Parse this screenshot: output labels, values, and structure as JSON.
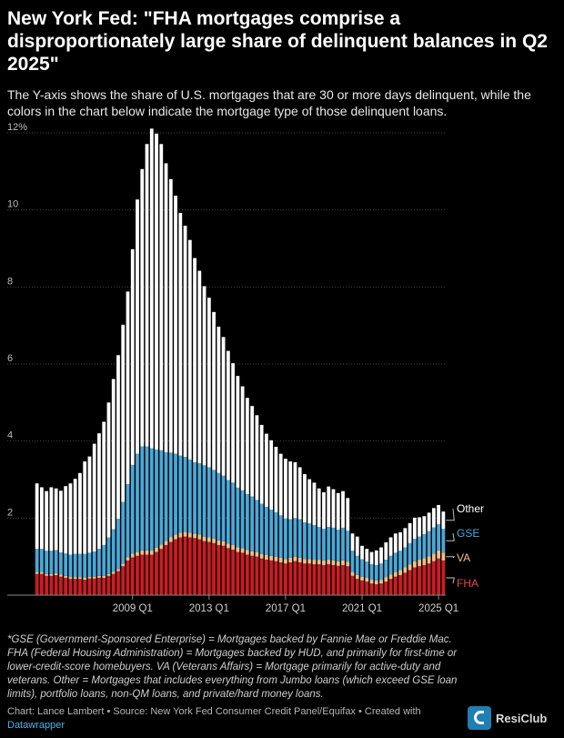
{
  "header": {
    "title": "New York Fed: \"FHA mortgages comprise a disproportionately large share of delinquent balances in Q2 2025\"",
    "subtitle": "The Y-axis shows the share of U.S. mortgages that are 30 or more days delinquent, while the colors in the chart below indicate the mortgage type of those delinquent loans."
  },
  "footer": {
    "footnote": "*GSE (Government-Sponsored Enterprise) = Mortgages backed by Fannie Mae or Freddie Mac. FHA (Federal Housing Administration) = Mortgages backed by HUD, and primarily for first-time or lower-credit-score homebuyers. VA (Veterans Affairs) = Mortgage primarily for active-duty and veterans. Other = Mortgages that includes everything from Jumbo loans (which exceed GSE loan limits), portfolio loans, non-QM loans, and private/hard money loans.",
    "credit": "Chart: Lance Lambert • Source: New York Fed Consumer Credit Panel/Equifax • Created with",
    "credit_link": "Datawrapper",
    "logo_text": "ResiClub"
  },
  "colors": {
    "FHA": "#cc1b22",
    "VA": "#f2be84",
    "GSE": "#4aa8d8",
    "Other": "#ffffff",
    "background": "#000000",
    "grid": "#444444"
  },
  "chart_data": {
    "type": "bar",
    "stacked": true,
    "title": "",
    "xlabel": "",
    "ylabel": "",
    "ylim": [
      0,
      12
    ],
    "y_ticks": [
      2,
      4,
      6,
      8,
      10
    ],
    "y_top_label": "12%",
    "grid": true,
    "x_tick_labels": [
      {
        "label": "2009 Q1",
        "index": 20
      },
      {
        "label": "2013 Q1",
        "index": 36
      },
      {
        "label": "2017 Q1",
        "index": 52
      },
      {
        "label": "2021 Q1",
        "index": 68
      },
      {
        "label": "2025 Q1",
        "index": 84
      }
    ],
    "categories": [
      "2004 Q1",
      "2004 Q2",
      "2004 Q3",
      "2004 Q4",
      "2005 Q1",
      "2005 Q2",
      "2005 Q3",
      "2005 Q4",
      "2006 Q1",
      "2006 Q2",
      "2006 Q3",
      "2006 Q4",
      "2007 Q1",
      "2007 Q2",
      "2007 Q3",
      "2007 Q4",
      "2008 Q1",
      "2008 Q2",
      "2008 Q3",
      "2008 Q4",
      "2009 Q1",
      "2009 Q2",
      "2009 Q3",
      "2009 Q4",
      "2010 Q1",
      "2010 Q2",
      "2010 Q3",
      "2010 Q4",
      "2011 Q1",
      "2011 Q2",
      "2011 Q3",
      "2011 Q4",
      "2012 Q1",
      "2012 Q2",
      "2012 Q3",
      "2012 Q4",
      "2013 Q1",
      "2013 Q2",
      "2013 Q3",
      "2013 Q4",
      "2014 Q1",
      "2014 Q2",
      "2014 Q3",
      "2014 Q4",
      "2015 Q1",
      "2015 Q2",
      "2015 Q3",
      "2015 Q4",
      "2016 Q1",
      "2016 Q2",
      "2016 Q3",
      "2016 Q4",
      "2017 Q1",
      "2017 Q2",
      "2017 Q3",
      "2017 Q4",
      "2018 Q1",
      "2018 Q2",
      "2018 Q3",
      "2018 Q4",
      "2019 Q1",
      "2019 Q2",
      "2019 Q3",
      "2019 Q4",
      "2020 Q1",
      "2020 Q2",
      "2020 Q3",
      "2020 Q4",
      "2021 Q1",
      "2021 Q2",
      "2021 Q3",
      "2021 Q4",
      "2022 Q1",
      "2022 Q2",
      "2022 Q3",
      "2022 Q4",
      "2023 Q1",
      "2023 Q2",
      "2023 Q3",
      "2023 Q4",
      "2024 Q1",
      "2024 Q2",
      "2024 Q3",
      "2024 Q4",
      "2025 Q1",
      "2025 Q2"
    ],
    "series": [
      {
        "name": "FHA",
        "values": [
          0.55,
          0.55,
          0.5,
          0.5,
          0.52,
          0.48,
          0.45,
          0.42,
          0.42,
          0.42,
          0.4,
          0.43,
          0.43,
          0.45,
          0.45,
          0.5,
          0.55,
          0.62,
          0.75,
          0.9,
          0.98,
          1.02,
          1.05,
          1.05,
          1.05,
          1.12,
          1.2,
          1.3,
          1.38,
          1.45,
          1.5,
          1.52,
          1.5,
          1.48,
          1.45,
          1.4,
          1.38,
          1.35,
          1.3,
          1.28,
          1.22,
          1.18,
          1.12,
          1.1,
          1.05,
          1.02,
          1.0,
          0.95,
          0.92,
          0.9,
          0.88,
          0.85,
          0.82,
          0.85,
          0.88,
          0.85,
          0.82,
          0.82,
          0.8,
          0.8,
          0.78,
          0.8,
          0.78,
          0.76,
          0.78,
          0.75,
          0.5,
          0.42,
          0.38,
          0.35,
          0.3,
          0.28,
          0.3,
          0.35,
          0.42,
          0.48,
          0.52,
          0.58,
          0.65,
          0.72,
          0.75,
          0.78,
          0.82,
          0.88,
          0.95,
          0.9
        ]
      },
      {
        "name": "VA",
        "values": [
          0.05,
          0.05,
          0.05,
          0.05,
          0.05,
          0.05,
          0.05,
          0.05,
          0.05,
          0.05,
          0.05,
          0.05,
          0.05,
          0.05,
          0.05,
          0.05,
          0.06,
          0.06,
          0.07,
          0.08,
          0.1,
          0.1,
          0.11,
          0.11,
          0.11,
          0.11,
          0.11,
          0.11,
          0.12,
          0.12,
          0.12,
          0.12,
          0.12,
          0.12,
          0.12,
          0.12,
          0.12,
          0.12,
          0.12,
          0.12,
          0.12,
          0.12,
          0.12,
          0.12,
          0.12,
          0.12,
          0.12,
          0.12,
          0.12,
          0.12,
          0.12,
          0.12,
          0.12,
          0.12,
          0.12,
          0.12,
          0.12,
          0.12,
          0.12,
          0.12,
          0.12,
          0.12,
          0.12,
          0.12,
          0.12,
          0.12,
          0.1,
          0.1,
          0.1,
          0.1,
          0.1,
          0.1,
          0.1,
          0.12,
          0.12,
          0.12,
          0.13,
          0.14,
          0.15,
          0.16,
          0.17,
          0.18,
          0.19,
          0.2,
          0.21,
          0.2
        ]
      },
      {
        "name": "GSE",
        "values": [
          0.6,
          0.6,
          0.6,
          0.6,
          0.6,
          0.58,
          0.58,
          0.58,
          0.6,
          0.6,
          0.62,
          0.62,
          0.65,
          0.7,
          0.8,
          0.95,
          1.1,
          1.3,
          1.6,
          1.9,
          2.3,
          2.55,
          2.7,
          2.7,
          2.65,
          2.55,
          2.45,
          2.3,
          2.2,
          2.1,
          2.0,
          1.95,
          1.9,
          1.85,
          1.85,
          1.85,
          1.82,
          1.78,
          1.75,
          1.7,
          1.65,
          1.62,
          1.55,
          1.5,
          1.45,
          1.42,
          1.35,
          1.3,
          1.25,
          1.2,
          1.15,
          1.1,
          1.05,
          1.0,
          1.0,
          1.0,
          0.95,
          0.92,
          0.9,
          0.85,
          0.82,
          0.85,
          0.85,
          0.82,
          0.85,
          0.8,
          0.55,
          0.5,
          0.45,
          0.42,
          0.4,
          0.4,
          0.42,
          0.45,
          0.48,
          0.5,
          0.5,
          0.52,
          0.55,
          0.58,
          0.6,
          0.62,
          0.65,
          0.68,
          0.68,
          0.62
        ]
      },
      {
        "name": "Other",
        "values": [
          1.7,
          1.6,
          1.55,
          1.65,
          1.6,
          1.6,
          1.75,
          1.85,
          1.95,
          2.1,
          2.4,
          2.5,
          2.8,
          3.0,
          3.2,
          3.5,
          3.9,
          4.25,
          4.6,
          5.0,
          5.6,
          6.6,
          7.2,
          7.85,
          8.3,
          8.2,
          7.95,
          7.5,
          7.1,
          6.7,
          6.3,
          6.0,
          5.7,
          5.3,
          5.0,
          4.65,
          4.4,
          4.1,
          3.8,
          3.6,
          3.35,
          3.1,
          2.9,
          2.7,
          2.5,
          2.35,
          2.2,
          2.05,
          1.9,
          1.8,
          1.7,
          1.6,
          1.55,
          1.5,
          1.45,
          1.35,
          1.25,
          1.15,
          1.1,
          1.0,
          0.95,
          1.05,
          1.0,
          0.95,
          0.95,
          0.85,
          0.45,
          0.5,
          0.35,
          0.33,
          0.32,
          0.38,
          0.42,
          0.45,
          0.48,
          0.5,
          0.48,
          0.5,
          0.52,
          0.55,
          0.5,
          0.47,
          0.48,
          0.5,
          0.5,
          0.45
        ]
      }
    ],
    "legend": {
      "position": "right-end-labels",
      "entries": [
        "Other",
        "GSE",
        "VA",
        "FHA"
      ]
    }
  }
}
